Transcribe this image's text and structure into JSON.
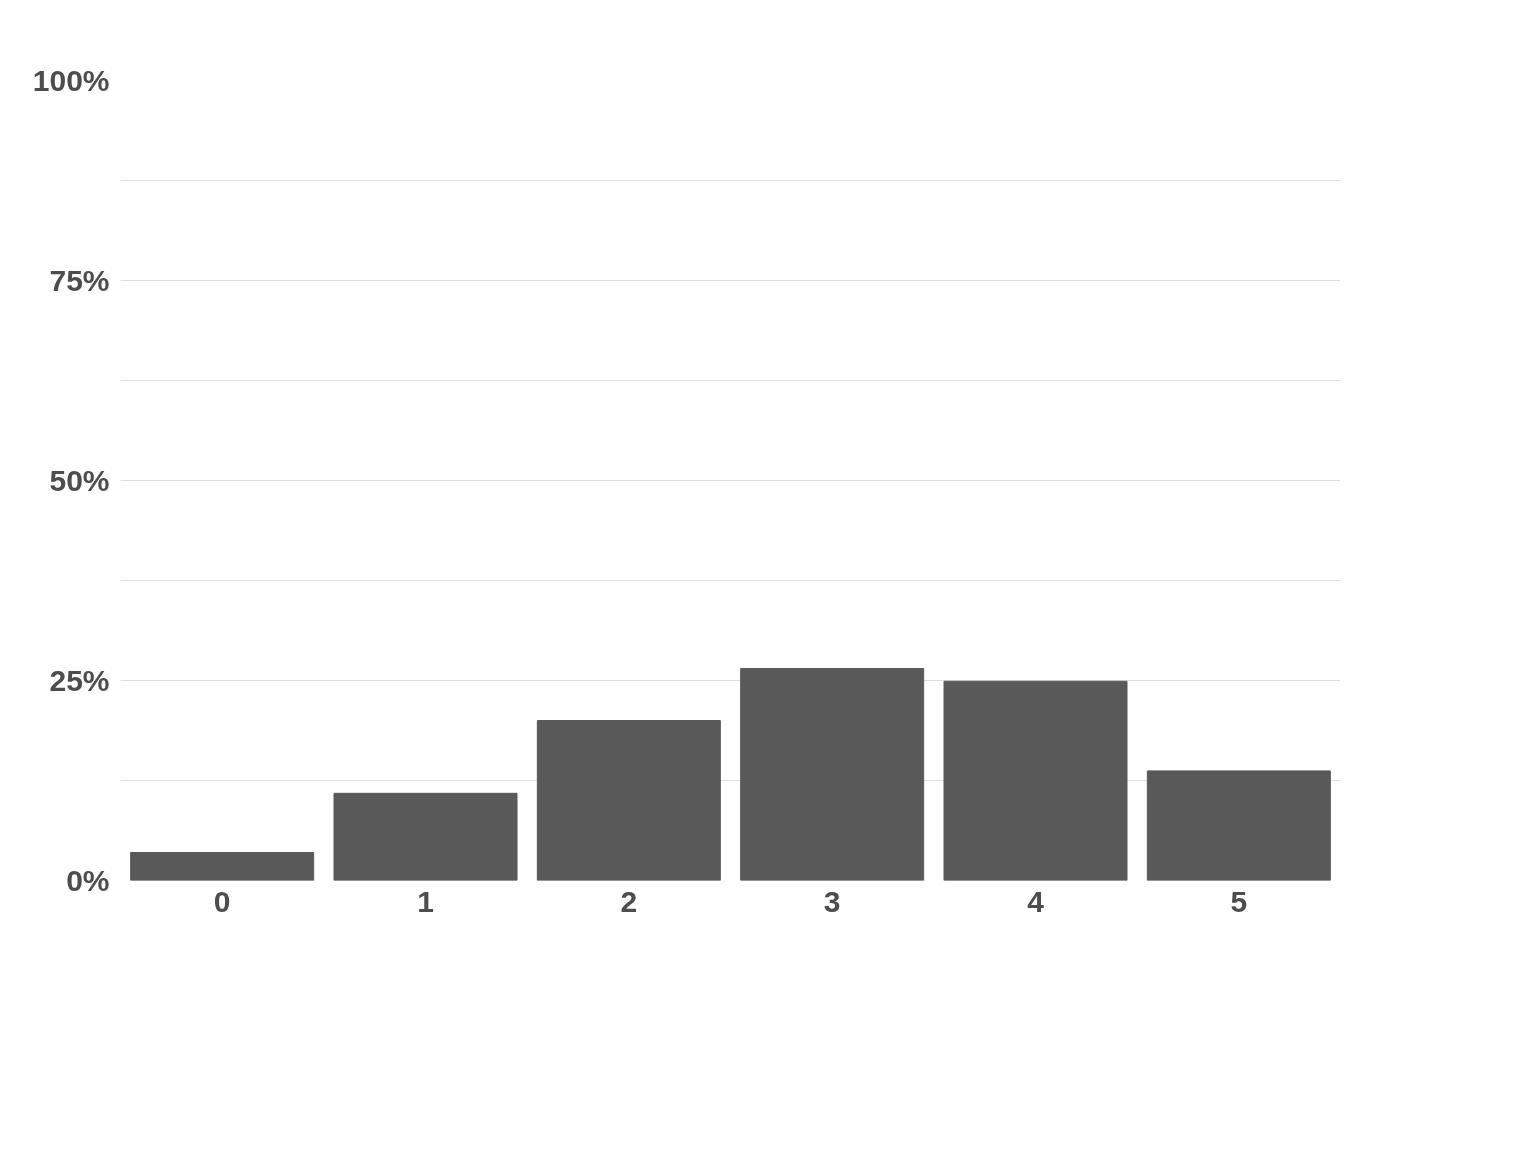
{
  "chart_data": {
    "type": "bar",
    "categories": [
      "0",
      "1",
      "2",
      "3",
      "4",
      "5"
    ],
    "values": [
      3.5,
      10.9,
      20,
      26.5,
      24.9,
      13.7
    ],
    "color": "#595959",
    "ylim": [
      0,
      100
    ],
    "yticks": [
      {
        "value": 0,
        "label": "0%"
      },
      {
        "value": 12.5,
        "label": null
      },
      {
        "value": 25,
        "label": "25%"
      },
      {
        "value": 37.5,
        "label": null
      },
      {
        "value": 50,
        "label": "50%"
      },
      {
        "value": 62.5,
        "label": null
      },
      {
        "value": 75,
        "label": "75%"
      },
      {
        "value": 87.5,
        "label": null
      },
      {
        "value": 100,
        "label": "100%"
      }
    ],
    "grid": "y"
  }
}
